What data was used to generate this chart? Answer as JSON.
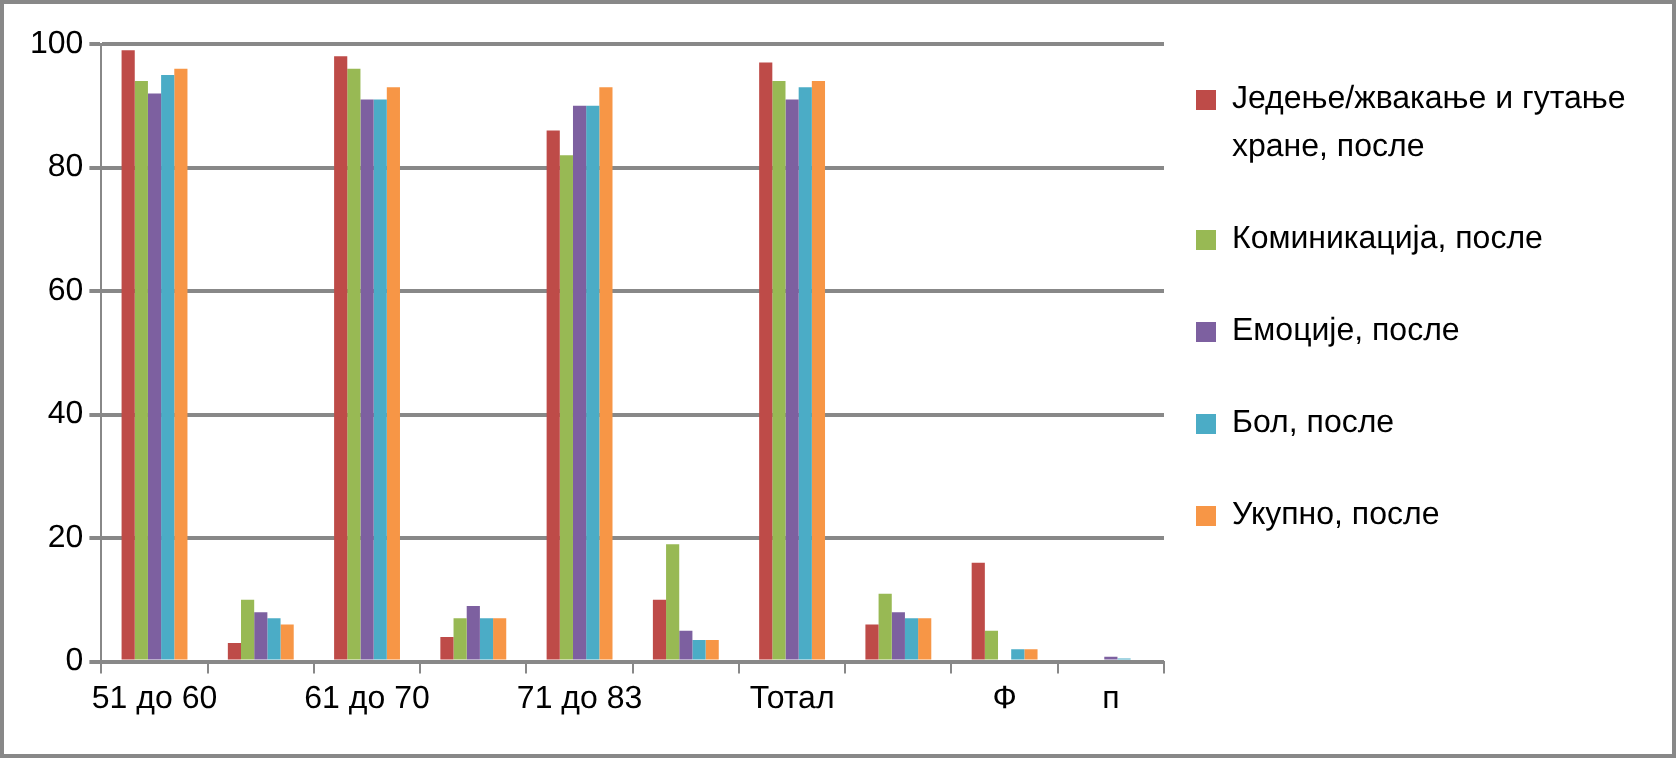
{
  "chart_data": {
    "type": "bar",
    "categories": [
      "51 до 60",
      null,
      "61 до 70",
      null,
      "71 до 83",
      null,
      "Тотал",
      null,
      "Ф",
      "п"
    ],
    "series": [
      {
        "name": "Једење/жвакање и гутање хране, после",
        "color": "#be4b48",
        "values": [
          99,
          3,
          98,
          4,
          86,
          10,
          97,
          6,
          16,
          null
        ]
      },
      {
        "name": "Коминикација, после",
        "color": "#98b954",
        "values": [
          94,
          10,
          96,
          7,
          82,
          19,
          94,
          11,
          5,
          null
        ]
      },
      {
        "name": "Емоције, после",
        "color": "#7d60a0",
        "values": [
          92,
          8,
          91,
          9,
          90,
          5,
          91,
          8,
          null,
          0.8
        ]
      },
      {
        "name": "Бол, после",
        "color": "#4bacc6",
        "values": [
          95,
          7,
          91,
          7,
          90,
          3.5,
          93,
          7,
          2,
          0.5
        ]
      },
      {
        "name": "Укупно, после",
        "color": "#f79646",
        "values": [
          96,
          6,
          93,
          7,
          93,
          3.5,
          94,
          7,
          2,
          null
        ]
      }
    ],
    "ylim": [
      0,
      100
    ],
    "yticks": [
      0,
      20,
      40,
      60,
      80,
      100
    ],
    "grid": "y",
    "legend": "right"
  }
}
